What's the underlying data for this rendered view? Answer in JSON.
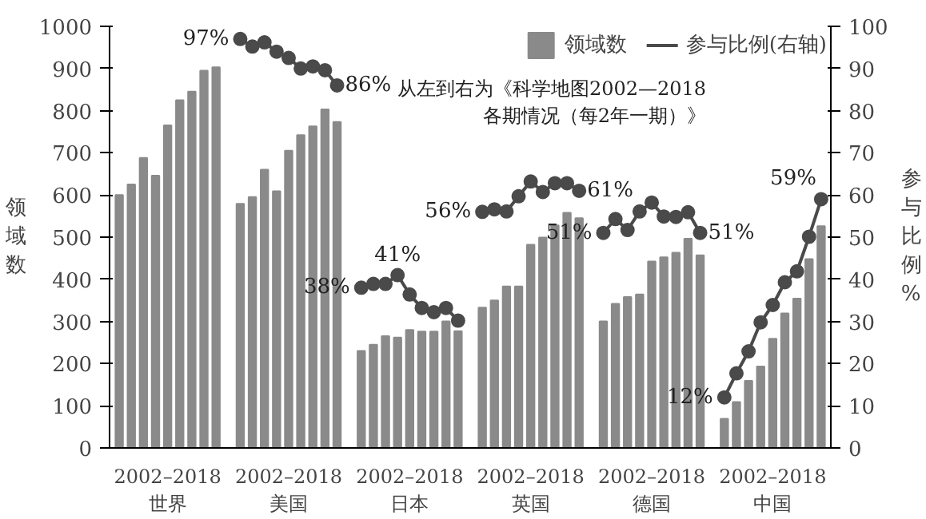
{
  "chart_data": {
    "type": "bar",
    "categories": [
      null,
      null,
      null,
      null,
      "2002–2018\n世界",
      null,
      null,
      null,
      null,
      null,
      null,
      null,
      null,
      null,
      "2002–2018\n美国",
      null,
      null,
      null,
      null,
      null,
      null,
      null,
      null,
      null,
      "2002–2018\n日本",
      null,
      null,
      null,
      null,
      null,
      null,
      null,
      null,
      null,
      "2002–2018\n英国",
      null,
      null,
      null,
      null,
      null,
      null,
      null,
      null,
      null,
      "2002–2018\n德国",
      null,
      null,
      null,
      null,
      null,
      null,
      null,
      null,
      null,
      "2002–2018\n中国",
      null,
      null,
      null,
      null
    ],
    "ylabel": "领域数",
    "y2label": "参与比例%",
    "annotations": [
      "从左到右为《科学地图2002—2018\n各期情况（每2年一期）》"
    ],
    "ylim": [
      0,
      1000
    ],
    "yticks": [
      0,
      100,
      200,
      300,
      400,
      500,
      600,
      700,
      800,
      900,
      1000
    ],
    "y2lim": [
      0,
      100
    ],
    "y2ticks": [
      0,
      10,
      20,
      30,
      40,
      50,
      60,
      70,
      80,
      90,
      100
    ],
    "grid": false,
    "legend": "top right",
    "series": [
      {
        "name": "领域数",
        "color": "#8a8a8a",
        "values": [
          600,
          625,
          688,
          646,
          765,
          825,
          845,
          895,
          903,
          null,
          579,
          595,
          660,
          609,
          705,
          742,
          763,
          803,
          773,
          null,
          230,
          245,
          265,
          262,
          280,
          276,
          276,
          300,
          277,
          null,
          333,
          350,
          383,
          383,
          482,
          499,
          528,
          558,
          545,
          null,
          300,
          342,
          358,
          364,
          442,
          452,
          463,
          496,
          457,
          null,
          69,
          109,
          159,
          193,
          259,
          319,
          354,
          448,
          526
        ]
      },
      {
        "name": "参与比例(右轴)",
        "type": "line",
        "axis": "y2",
        "color": "#4a4a4a",
        "marker": "circle",
        "values": [
          null,
          null,
          null,
          null,
          null,
          null,
          null,
          null,
          null,
          null,
          97,
          95.2,
          96.2,
          94,
          92.5,
          90,
          90.5,
          89.6,
          86,
          null,
          38,
          38.9,
          38.9,
          41,
          36.4,
          33.2,
          32.2,
          33.2,
          30.2,
          null,
          56,
          56.6,
          56.1,
          59.7,
          63.2,
          60.7,
          62.8,
          62.8,
          61,
          null,
          51,
          54.3,
          51.7,
          56.1,
          58.2,
          54.9,
          54.8,
          55.9,
          51,
          null,
          12,
          17.7,
          22.9,
          29.8,
          33.9,
          39.3,
          41.9,
          50.1,
          59
        ],
        "value_labels": [
          null,
          null,
          null,
          null,
          null,
          null,
          null,
          null,
          null,
          null,
          "97%",
          null,
          null,
          null,
          null,
          null,
          null,
          null,
          "86%",
          null,
          "38%",
          null,
          null,
          "41%",
          null,
          null,
          null,
          null,
          null,
          null,
          "56%",
          null,
          null,
          null,
          null,
          null,
          null,
          null,
          "61%",
          null,
          "51%",
          null,
          null,
          null,
          null,
          null,
          null,
          null,
          "51%",
          null,
          "12%",
          null,
          null,
          null,
          null,
          null,
          null,
          null,
          "59%"
        ]
      }
    ]
  }
}
